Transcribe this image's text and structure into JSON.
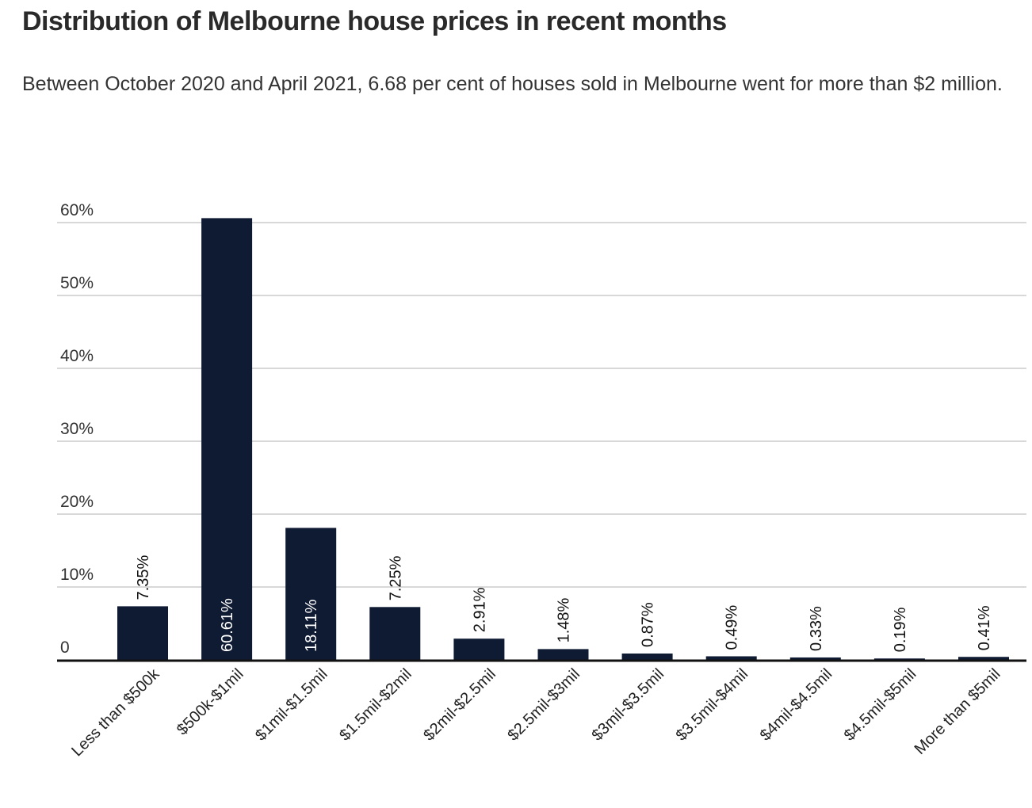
{
  "title": "Distribution of Melbourne house prices in recent months",
  "subtitle": "Between October 2020 and April 2021, 6.68 per cent of houses sold in Melbourne went for more than $2 million.",
  "colors": {
    "bar": "#0f1a33",
    "grid": "#cccccc",
    "axis": "#111111"
  },
  "chart_data": {
    "type": "bar",
    "categories": [
      "Less than $500k",
      "$500k-$1mil",
      "$1mil-$1.5mil",
      "$1.5mil-$2mil",
      "$2mil-$2.5mil",
      "$2.5mil-$3mil",
      "$3mil-$3.5mil",
      "$3.5mil-$4mil",
      "$4mil-$4.5mil",
      "$4.5mil-$5mil",
      "More than $5mil"
    ],
    "values": [
      7.35,
      60.61,
      18.11,
      7.25,
      2.91,
      1.48,
      0.87,
      0.49,
      0.33,
      0.19,
      0.41
    ],
    "data_labels": [
      "7.35%",
      "60.61%",
      "18.11%",
      "7.25%",
      "2.91%",
      "1.48%",
      "0.87%",
      "0.49%",
      "0.33%",
      "0.19%",
      "0.41%"
    ],
    "yticks": [
      0,
      10,
      20,
      30,
      40,
      50,
      60
    ],
    "ytick_labels": [
      "0",
      "10%",
      "20%",
      "30%",
      "40%",
      "50%",
      "60%"
    ],
    "ylim": [
      0,
      60
    ],
    "xlabel": "",
    "ylabel": "",
    "grid": true
  }
}
